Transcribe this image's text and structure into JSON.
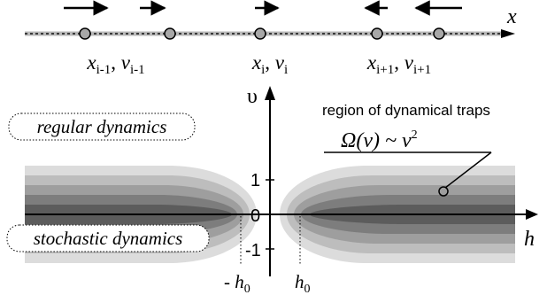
{
  "chain": {
    "axis_label": "x",
    "particles": [
      {
        "label": "x",
        "sub": "i-1",
        "v": "v",
        "vsub": "i-1",
        "velocity_direction": "right"
      },
      {
        "label": "x",
        "sub": "i",
        "v": "v",
        "vsub": "i",
        "velocity_direction": "right"
      },
      {
        "label": "x",
        "sub": "i+1",
        "v": "v",
        "vsub": "i+1",
        "velocity_direction": "left"
      }
    ],
    "extra_particles": [
      {
        "velocity_direction": "right"
      },
      {
        "velocity_direction": "left"
      }
    ]
  },
  "phase_plane": {
    "y_axis_label": "υ",
    "x_axis_label": "h",
    "y_ticks": [
      "1",
      "0",
      "-1"
    ],
    "x_marker_left": "- h",
    "x_marker_left_sub": "0",
    "x_marker_right": "h",
    "x_marker_right_sub": "0",
    "regular_label": "regular dynamics",
    "stochastic_label": "stochastic dynamics",
    "region_label": "region of dynamical traps",
    "omega_formula": "Ω(v) ~ v",
    "omega_power": "2"
  },
  "colors": {
    "band_1": "#dcdcdc",
    "band_2": "#bdbdbd",
    "band_3": "#9e9e9e",
    "band_4": "#7d7d7d",
    "band_5": "#5c5c5c",
    "chain_line": "#b9b9b9",
    "particle": "#a8a8a8"
  }
}
